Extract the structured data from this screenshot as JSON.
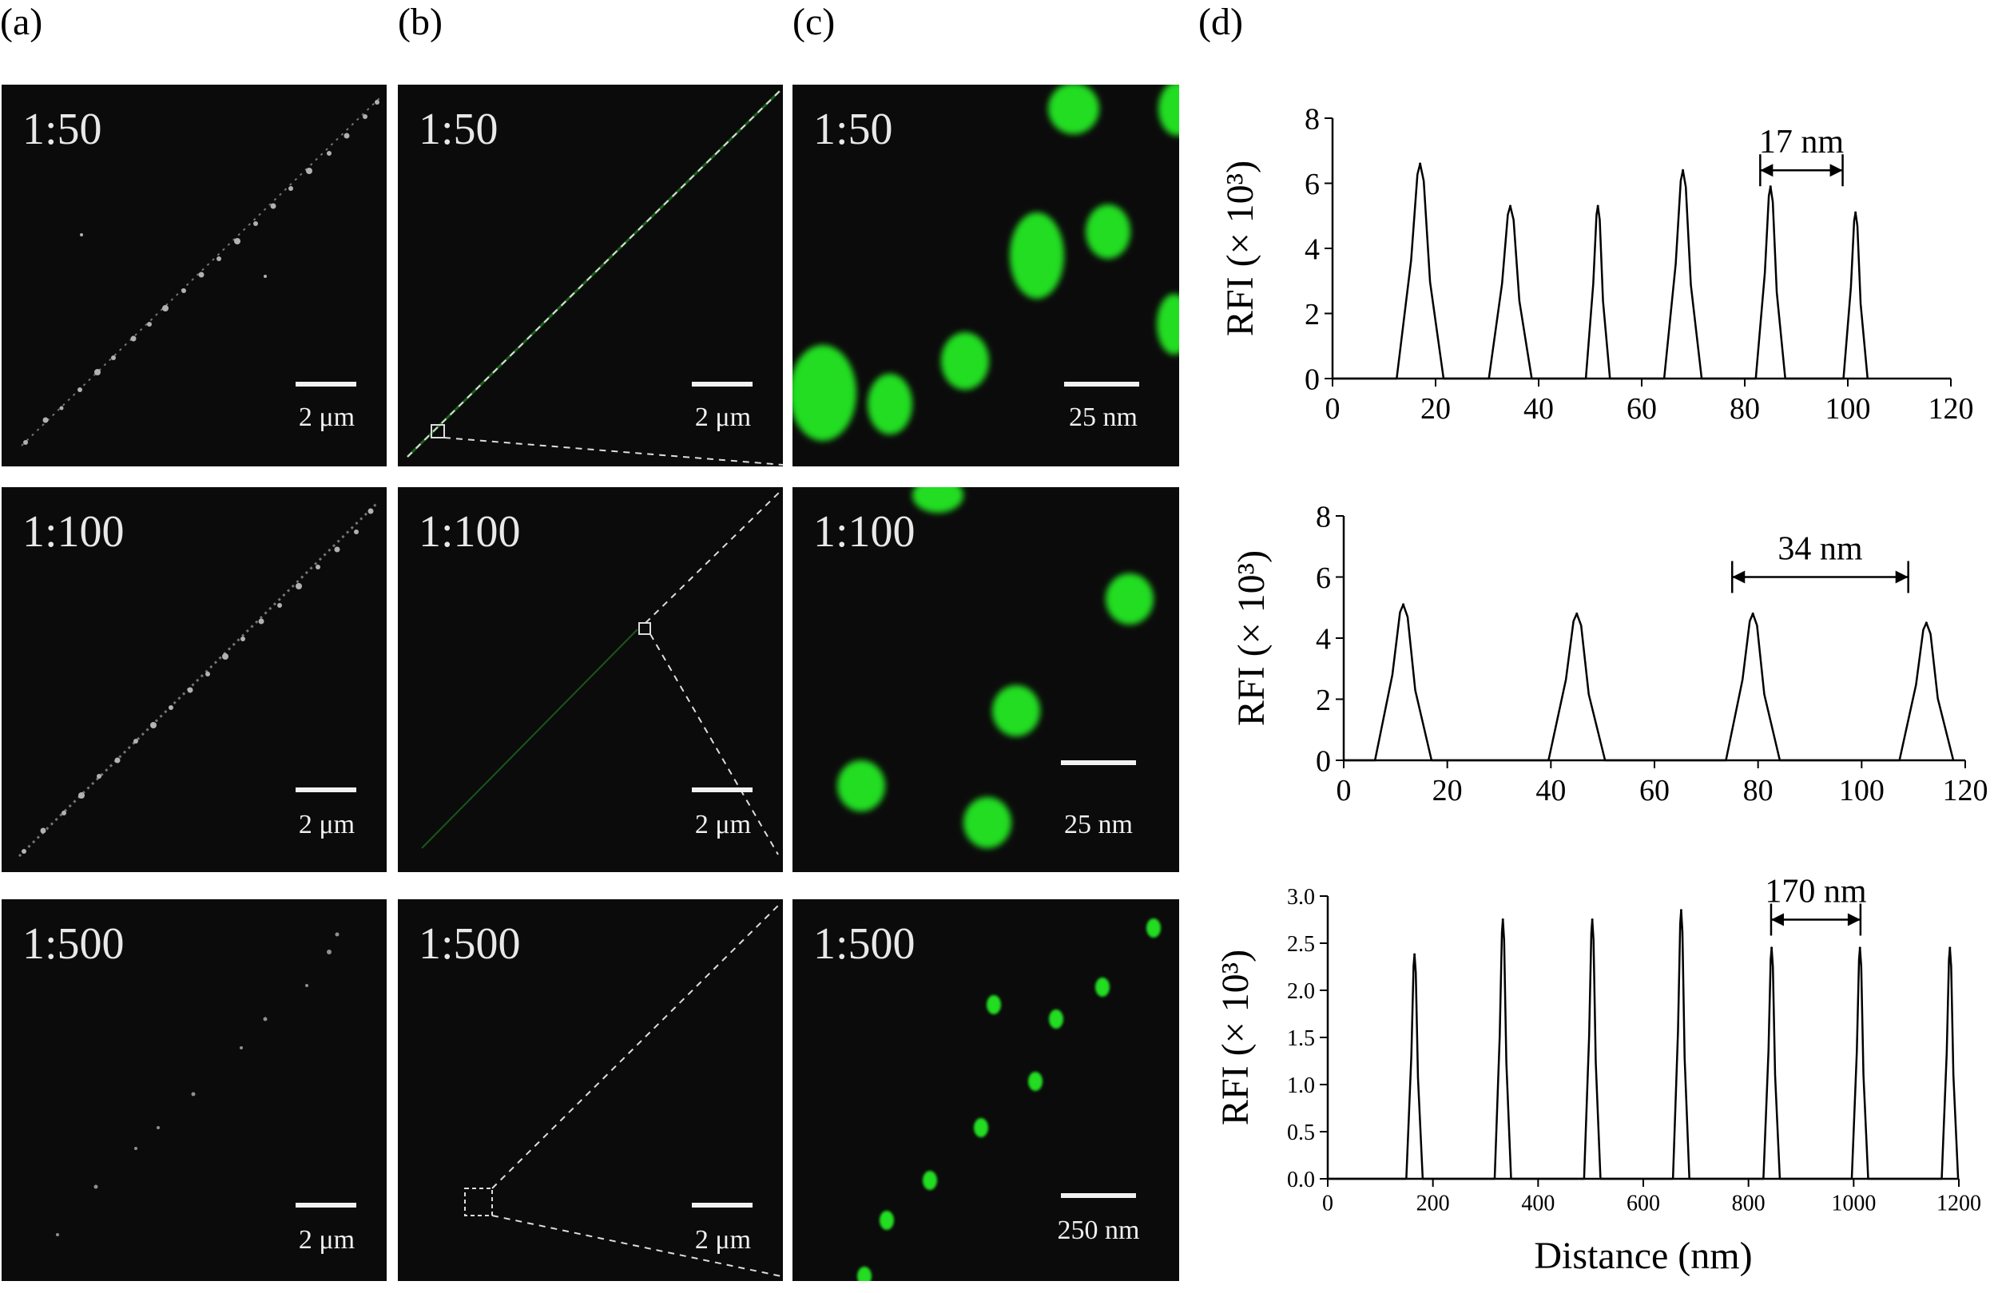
{
  "panel_labels": [
    "(a)",
    "(b)",
    "(c)",
    "(d)"
  ],
  "rows": [
    {
      "ratio": "1:50",
      "scale_a": "2 μm",
      "scale_b": "2 μm",
      "scale_c": "25 nm"
    },
    {
      "ratio": "1:100",
      "scale_a": "2 μm",
      "scale_b": "2 μm",
      "scale_c": "25 nm"
    },
    {
      "ratio": "1:500",
      "scale_a": "2 μm",
      "scale_b": "2 μm",
      "scale_c": "250 nm"
    }
  ],
  "colors": {
    "background": "#0b0b0b",
    "dots": "#22dd22",
    "line": "#000000"
  },
  "chart_data": [
    {
      "type": "line",
      "title": "",
      "ylabel": "RFI (× 10³)",
      "xlabel": "",
      "xlim": [
        0,
        120
      ],
      "ylim": [
        0,
        8
      ],
      "xticks": [
        0,
        20,
        40,
        60,
        80,
        100,
        120
      ],
      "yticks": [
        0,
        2,
        4,
        6,
        8
      ],
      "ytick_labels": [
        "0",
        "2",
        "4",
        "6",
        "8"
      ],
      "peaks": [
        {
          "x": 17,
          "y": 6.6,
          "w": 3.5
        },
        {
          "x": 34.5,
          "y": 5.3,
          "w": 3.2
        },
        {
          "x": 51.5,
          "y": 5.3,
          "w": 1.8
        },
        {
          "x": 68,
          "y": 6.4,
          "w": 2.8
        },
        {
          "x": 85,
          "y": 5.9,
          "w": 2.2
        },
        {
          "x": 101.5,
          "y": 5.1,
          "w": 1.8
        }
      ],
      "annotation": {
        "text": "17 nm",
        "x1": 83,
        "x2": 99,
        "y": 6.4
      }
    },
    {
      "type": "line",
      "title": "",
      "ylabel": "RFI (× 10³)",
      "xlabel": "",
      "xlim": [
        0,
        120
      ],
      "ylim": [
        0,
        8
      ],
      "xticks": [
        0,
        20,
        40,
        60,
        80,
        100,
        120
      ],
      "yticks": [
        0,
        2,
        4,
        6,
        8
      ],
      "ytick_labels": [
        "0",
        "2",
        "4",
        "6",
        "8"
      ],
      "peaks": [
        {
          "x": 11.5,
          "y": 5.1,
          "w": 4.2
        },
        {
          "x": 45,
          "y": 4.8,
          "w": 4.2
        },
        {
          "x": 79,
          "y": 4.8,
          "w": 4.0
        },
        {
          "x": 112.5,
          "y": 4.5,
          "w": 4.0
        }
      ],
      "annotation": {
        "text": "34 nm",
        "x1": 75,
        "x2": 109,
        "y": 6.0
      }
    },
    {
      "type": "line",
      "title": "",
      "ylabel": "RFI (× 10³)",
      "xlabel": "Distance (nm)",
      "xlim": [
        0,
        1200
      ],
      "ylim": [
        0,
        3
      ],
      "xticks": [
        0,
        200,
        400,
        600,
        800,
        1000,
        1200
      ],
      "yticks": [
        0,
        0.5,
        1.0,
        1.5,
        2.0,
        2.5,
        3.0
      ],
      "ytick_labels": [
        "0.0",
        "0.5",
        "1.0",
        "1.5",
        "2.0",
        "2.5",
        "3.0"
      ],
      "peaks": [
        {
          "x": 165,
          "y": 2.38,
          "w": 12
        },
        {
          "x": 333,
          "y": 2.75,
          "w": 12
        },
        {
          "x": 503,
          "y": 2.75,
          "w": 12
        },
        {
          "x": 672,
          "y": 2.85,
          "w": 12
        },
        {
          "x": 844,
          "y": 2.45,
          "w": 12
        },
        {
          "x": 1012,
          "y": 2.45,
          "w": 12
        },
        {
          "x": 1183,
          "y": 2.45,
          "w": 12
        }
      ],
      "annotation": {
        "text": "170 nm",
        "x1": 843,
        "x2": 1013,
        "y": 2.75
      }
    }
  ]
}
